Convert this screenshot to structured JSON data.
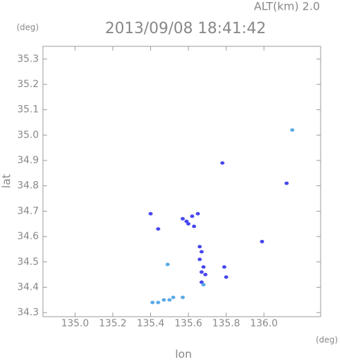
{
  "chart_data": {
    "type": "scatter",
    "title": "2013/09/08 18:41:42",
    "annotation": "ALT(km) 2.0",
    "y_unit": "(deg)",
    "x_unit": "(deg)",
    "x_label": "lon",
    "y_label": "lat",
    "xlim": [
      134.83,
      136.3
    ],
    "ylim": [
      34.284,
      35.35
    ],
    "xticks": [
      {
        "value": 135,
        "label": "135.0"
      },
      135.2,
      135.4,
      135.6,
      135.8,
      {
        "value": 136,
        "label": "136.0"
      }
    ],
    "yticks": [
      34.3,
      34.4,
      34.5,
      34.6,
      34.7,
      34.8,
      34.9,
      {
        "value": 35,
        "label": "35.0"
      },
      35.1,
      35.2,
      35.3
    ],
    "series": [
      {
        "color": "#4646f0",
        "x": [
          135.4,
          135.44,
          135.57,
          135.59,
          135.62,
          135.65,
          135.78,
          136.12,
          135.99,
          135.66,
          135.67,
          135.66,
          135.68,
          135.67,
          135.69,
          135.79,
          135.8,
          135.67,
          135.6,
          135.63
        ],
        "y": [
          34.69,
          34.63,
          34.67,
          34.66,
          34.68,
          34.69,
          34.89,
          34.81,
          34.58,
          34.56,
          34.54,
          34.51,
          34.48,
          34.46,
          34.45,
          34.48,
          34.44,
          34.42,
          34.65,
          34.64
        ]
      },
      {
        "color": "#5aaae6",
        "x": [
          135.41,
          135.44,
          135.47,
          135.5,
          135.52,
          135.57,
          135.68,
          135.49,
          136.15
        ],
        "y": [
          34.34,
          34.34,
          34.35,
          34.35,
          34.36,
          34.36,
          34.41,
          34.49,
          35.02
        ]
      }
    ]
  }
}
